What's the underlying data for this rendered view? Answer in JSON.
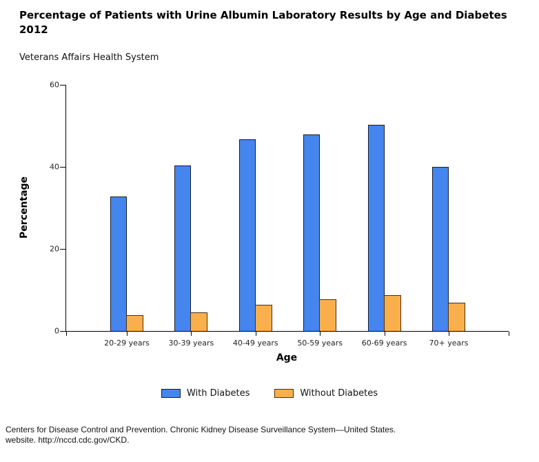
{
  "header": {
    "title_lines": [
      "Percentage of Patients with Urine Albumin Laboratory Results by Age and Diabetes",
      "2012"
    ],
    "subtitle": "Veterans Affairs Health System"
  },
  "chart_data": {
    "type": "bar",
    "title": "Percentage of Patients with Urine Albumin Laboratory Results by Age and Diabetes 2012",
    "subtitle": "Veterans Affairs Health System",
    "categories": [
      "20-29 years",
      "30-39 years",
      "40-49 years",
      "50-59 years",
      "60-69 years",
      "70+ years"
    ],
    "series": [
      {
        "name": "With Diabetes",
        "color": "#4486ee",
        "border_color": "#131b2e",
        "values": [
          32.8,
          40.3,
          46.7,
          47.9,
          50.2,
          40.0
        ]
      },
      {
        "name": "Without Diabetes",
        "color": "#f9b04c",
        "border_color": "#4d2a0d",
        "values": [
          3.9,
          4.5,
          6.4,
          7.7,
          8.7,
          6.9
        ]
      }
    ],
    "xlabel": "Age",
    "ylabel": "Percentage",
    "ylim": [
      0,
      60
    ],
    "yticks": [
      0,
      20,
      40,
      60
    ],
    "grid": false,
    "legend_position": "bottom"
  },
  "footer": {
    "source_lines": [
      "Centers for Disease Control and Prevention. Chronic Kidney Disease Surveillance System—United States.",
      "website. http://nccd.cdc.gov/CKD."
    ]
  }
}
